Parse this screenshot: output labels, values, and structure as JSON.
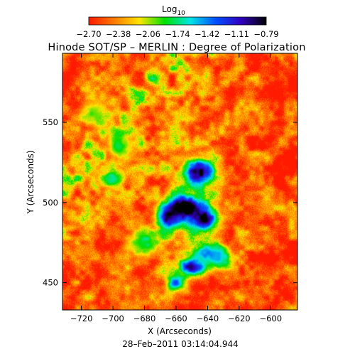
{
  "chart_data": {
    "type": "heatmap",
    "title": "Hinode SOT/SP – MERLIN : Degree of Polarization",
    "colorbar": {
      "label_base": "Log",
      "label_sub": "10",
      "ticks": [
        "−2.70",
        "−2.38",
        "−2.06",
        "−1.74",
        "−1.42",
        "−1.11",
        "−0.79"
      ],
      "range": [
        -2.7,
        -0.79
      ],
      "colormap": [
        "#ff1a00",
        "#ff7a00",
        "#ffe500",
        "#00e000",
        "#00e5e5",
        "#0050ff",
        "#3000c0",
        "#000000"
      ]
    },
    "xlabel": "X (Arcseconds)",
    "ylabel": "Y (Arcseconds)",
    "xlim": [
      -732,
      -583
    ],
    "ylim": [
      433,
      593
    ],
    "xticks": [
      -720,
      -700,
      -680,
      -660,
      -640,
      -620,
      -600
    ],
    "xtick_labels": [
      "−720",
      "−700",
      "−680",
      "−660",
      "−640",
      "−620",
      "−600"
    ],
    "yticks": [
      450,
      500,
      550
    ],
    "ytick_labels": [
      "450",
      "500",
      "550"
    ],
    "features": [
      {
        "x": -645,
        "y": 519,
        "v": -0.85,
        "sx": 7,
        "sy": 6
      },
      {
        "x": -655,
        "y": 497,
        "v": -0.82,
        "sx": 7,
        "sy": 5
      },
      {
        "x": -642,
        "y": 490,
        "v": -0.95,
        "sx": 6,
        "sy": 5
      },
      {
        "x": -665,
        "y": 491,
        "v": -1.0,
        "sx": 5,
        "sy": 5
      },
      {
        "x": -650,
        "y": 460,
        "v": -0.9,
        "sx": 6,
        "sy": 4
      },
      {
        "x": -660,
        "y": 450,
        "v": -1.3,
        "sx": 5,
        "sy": 4
      },
      {
        "x": -640,
        "y": 468,
        "v": -1.45,
        "sx": 7,
        "sy": 4
      },
      {
        "x": -632,
        "y": 465,
        "v": -1.5,
        "sx": 6,
        "sy": 5
      },
      {
        "x": -700,
        "y": 515,
        "v": -1.6,
        "sx": 5,
        "sy": 4
      },
      {
        "x": -695,
        "y": 535,
        "v": -1.75,
        "sx": 6,
        "sy": 6
      },
      {
        "x": -712,
        "y": 556,
        "v": -1.9,
        "sx": 6,
        "sy": 6
      },
      {
        "x": -680,
        "y": 475,
        "v": -1.7,
        "sx": 7,
        "sy": 6
      }
    ],
    "date": "28–Feb–2011 03:14:04.944"
  }
}
